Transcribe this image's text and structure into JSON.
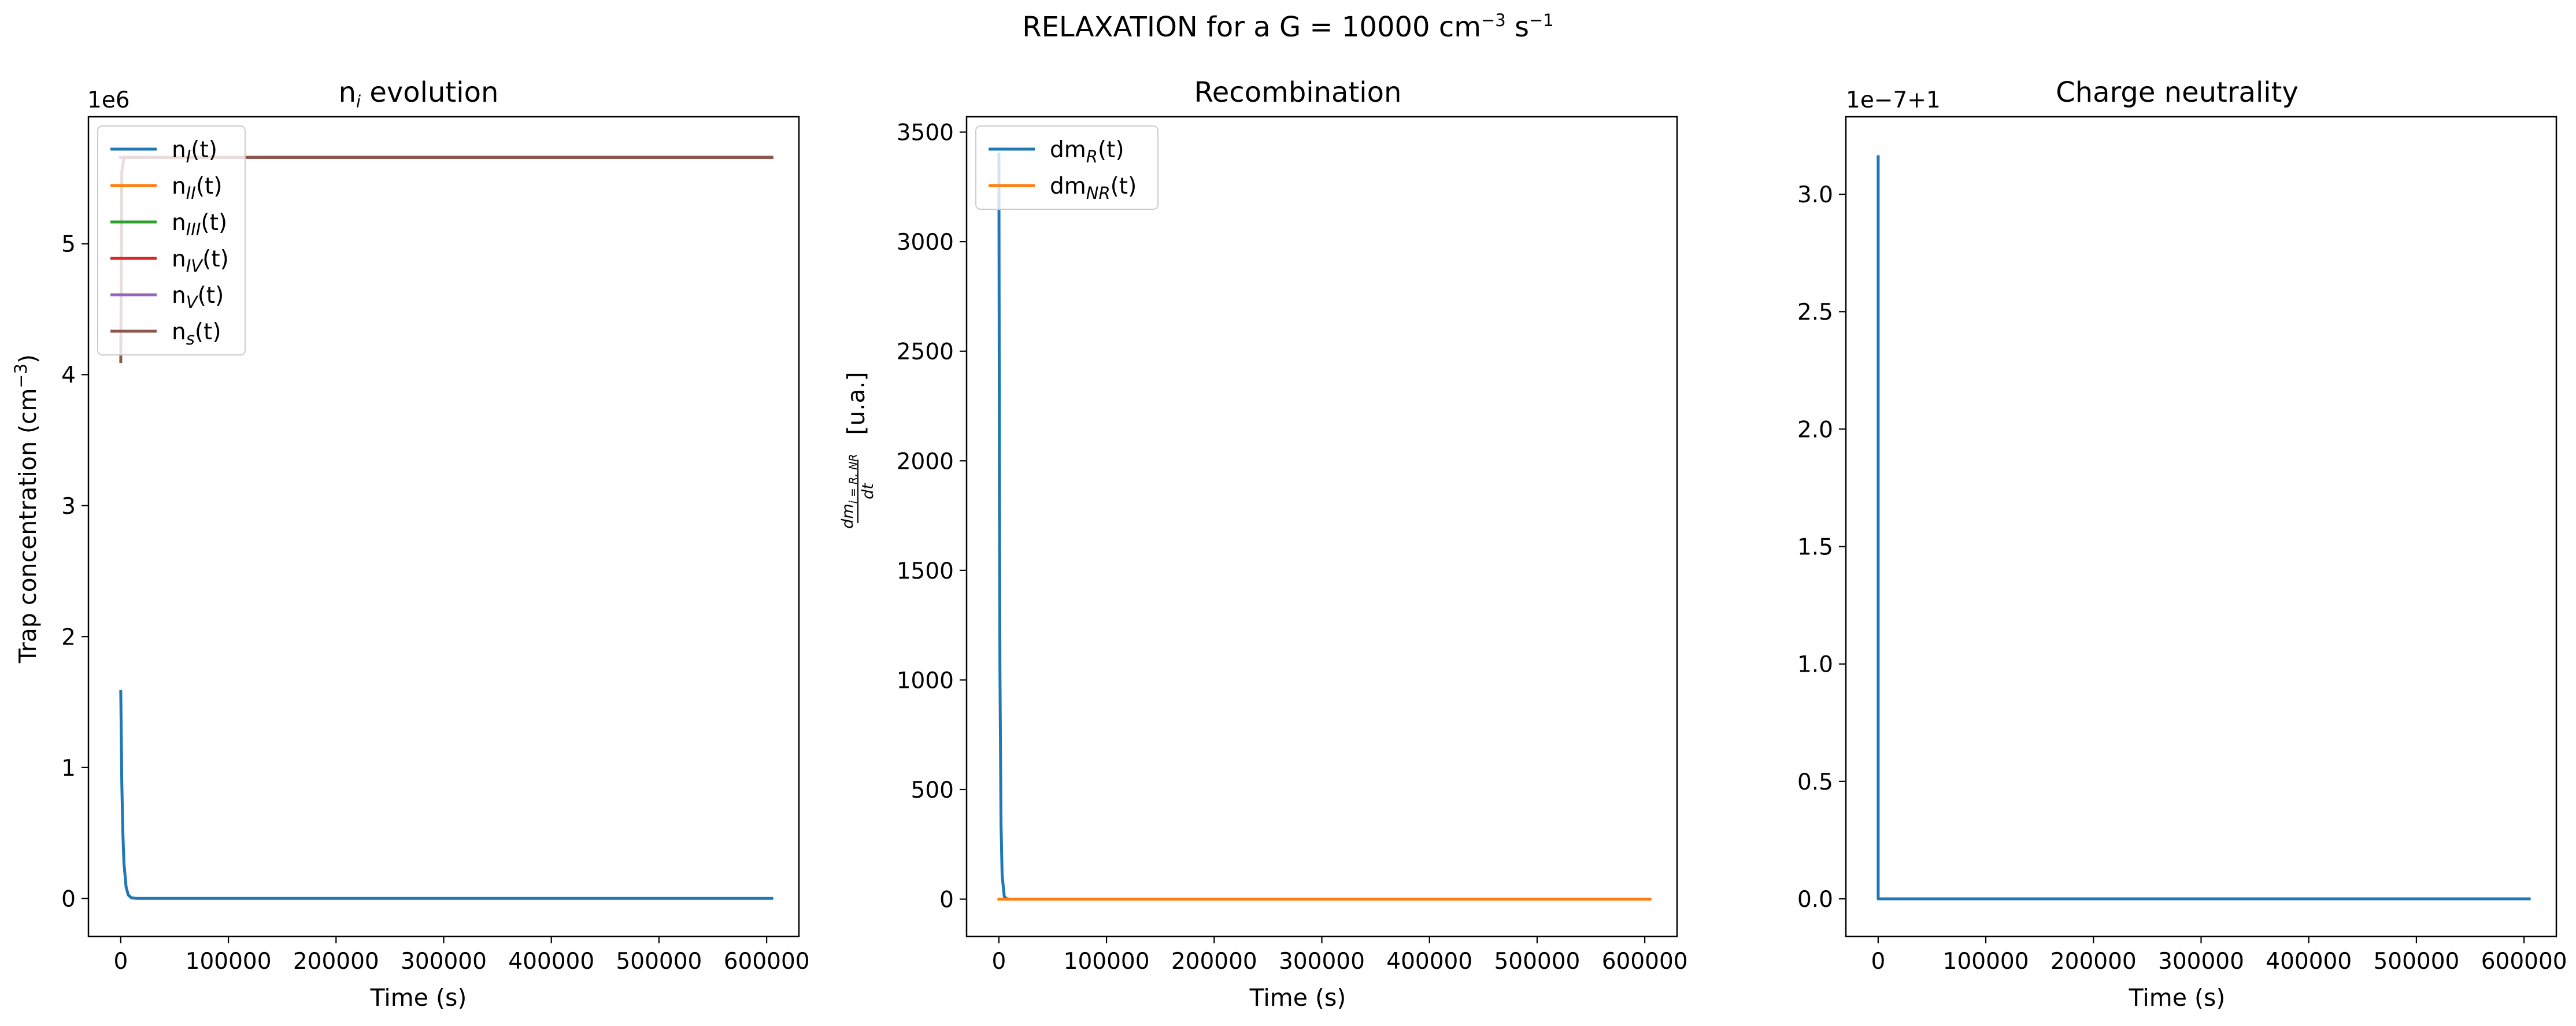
{
  "figure": {
    "suptitle_main": "RELAXATION for a G = 10000 cm",
    "suptitle_exp1": "−3",
    "suptitle_mid": " s",
    "suptitle_exp2": "−1"
  },
  "chart_data": [
    {
      "type": "line",
      "title_main": "n",
      "title_sub": "i",
      "title_rest": " evolution",
      "xlabel": "Time (s)",
      "ylabel_main": "Trap concentration (cm",
      "ylabel_sup": "−3",
      "ylabel_end": ")",
      "offset_text": "1e6",
      "xlim": [
        -30000,
        630000
      ],
      "ylim": [
        -0.29,
        5.97
      ],
      "y_scale_factor": 1000000,
      "xticks": [
        0,
        100000,
        200000,
        300000,
        400000,
        500000,
        600000
      ],
      "xtick_labels": [
        "0",
        "100000",
        "200000",
        "300000",
        "400000",
        "500000",
        "600000"
      ],
      "yticks": [
        0,
        1,
        2,
        3,
        4,
        5
      ],
      "ytick_labels": [
        "0",
        "1",
        "2",
        "3",
        "4",
        "5"
      ],
      "legend_position": "upper-left",
      "series": [
        {
          "name": "n",
          "sub": "I",
          "end": "(t)",
          "color": "#1f77b4",
          "x": [
            0,
            1000,
            2000,
            3000,
            5000,
            7000,
            10000,
            15000,
            20000,
            604800
          ],
          "y": [
            1.58,
            0.88,
            0.49,
            0.27,
            0.085,
            0.026,
            0.004,
            0.0,
            0.0,
            0.0
          ]
        },
        {
          "name": "n",
          "sub": "II",
          "end": "(t)",
          "color": "#ff7f0e",
          "x": [
            0,
            604800
          ],
          "y": [
            5.66,
            5.66
          ]
        },
        {
          "name": "n",
          "sub": "III",
          "end": "(t)",
          "color": "#2ca02c",
          "x": [
            0,
            604800
          ],
          "y": [
            5.66,
            5.66
          ]
        },
        {
          "name": "n",
          "sub": "IV",
          "end": "(t)",
          "color": "#d62728",
          "x": [
            0,
            604800
          ],
          "y": [
            5.66,
            5.66
          ]
        },
        {
          "name": "n",
          "sub": "V",
          "end": "(t)",
          "color": "#9467bd",
          "x": [
            0,
            604800
          ],
          "y": [
            5.66,
            5.66
          ]
        },
        {
          "name": "n",
          "sub": "s",
          "end": "(t)",
          "color": "#8c564b",
          "x": [
            0,
            1000,
            3000,
            604800
          ],
          "y": [
            4.1,
            5.55,
            5.66,
            5.66
          ]
        }
      ]
    },
    {
      "type": "line",
      "title": "Recombination",
      "xlabel": "Time (s)",
      "ylabel_num": "dm",
      "ylabel_num_sub": "i = R, NR",
      "ylabel_den": "dt",
      "ylabel_unit": "[u.a.]",
      "offset_text": "",
      "xlim": [
        -30000,
        630000
      ],
      "ylim": [
        -170,
        3570
      ],
      "y_scale_factor": 1,
      "xticks": [
        0,
        100000,
        200000,
        300000,
        400000,
        500000,
        600000
      ],
      "xtick_labels": [
        "0",
        "100000",
        "200000",
        "300000",
        "400000",
        "500000",
        "600000"
      ],
      "yticks": [
        0,
        500,
        1000,
        1500,
        2000,
        2500,
        3000,
        3500
      ],
      "ytick_labels": [
        "0",
        "500",
        "1000",
        "1500",
        "2000",
        "2500",
        "3000",
        "3500"
      ],
      "legend_position": "upper-left",
      "series": [
        {
          "name": "dm",
          "sub": "R",
          "end": "(t)",
          "color": "#1f77b4",
          "x": [
            0,
            500,
            1000,
            2000,
            3000,
            5000,
            7000,
            10000,
            604800
          ],
          "y": [
            3400,
            1900,
            1050,
            340,
            110,
            12,
            2,
            0,
            0
          ]
        },
        {
          "name": "dm",
          "sub": "NR",
          "end": "(t)",
          "color": "#ff7f0e",
          "x": [
            0,
            604800
          ],
          "y": [
            0,
            0
          ]
        }
      ]
    },
    {
      "type": "line",
      "title": "Charge neutrality",
      "xlabel": "Time (s)",
      "offset_text": "1e−7+1",
      "xlim": [
        -30000,
        630000
      ],
      "ylim": [
        -0.16,
        3.33
      ],
      "y_scale_factor": 1,
      "xticks": [
        0,
        100000,
        200000,
        300000,
        400000,
        500000,
        600000
      ],
      "xtick_labels": [
        "0",
        "100000",
        "200000",
        "300000",
        "400000",
        "500000",
        "600000"
      ],
      "yticks": [
        0,
        0.5,
        1.0,
        1.5,
        2.0,
        2.5,
        3.0
      ],
      "ytick_labels": [
        "0.0",
        "0.5",
        "1.0",
        "1.5",
        "2.0",
        "2.5",
        "3.0"
      ],
      "legend_position": "none",
      "series": [
        {
          "color": "#1f77b4",
          "x": [
            0,
            5,
            10,
            604800
          ],
          "y": [
            3.16,
            0.0,
            0.0,
            0.0
          ]
        }
      ]
    }
  ]
}
